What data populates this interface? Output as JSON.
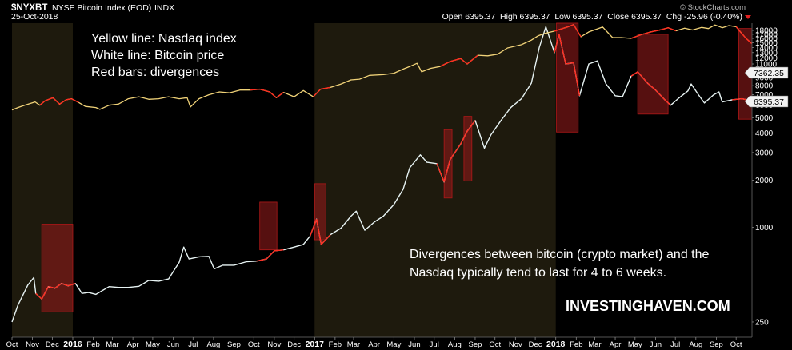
{
  "header": {
    "symbol": "$NYXBT",
    "name": "NYSE Bitcoin Index (EOD)",
    "exchange": "INDX",
    "date": "25-Oct-2018",
    "source": "© StockCharts.com",
    "quote_line": "Open 6395.37  High 6395.37  Low 6395.37  Close 6395.37  Chg -25.96 (-0.40%)"
  },
  "annotations": {
    "legend_lines": [
      "Yellow line: Nasdaq index",
      "White line: Bitcoin price",
      "Red bars: divergences"
    ],
    "note_lines": [
      "Divergences between bitcoin (crypto market) and the",
      "Nasdaq typically tend to last for 4 to 6 weeks."
    ],
    "brand": "INVESTINGHAVEN.COM"
  },
  "price_tags": [
    "7362.35",
    "6395.37"
  ],
  "colors": {
    "background": "#000000",
    "year_shade": "#1e1a0d",
    "bitcoin_line": "#e6f2f2",
    "nasdaq_line": "#f0d278",
    "divergence_fill": "#8b1a1a",
    "divergence_line": "#ff2b1e"
  },
  "chart_data": {
    "type": "line",
    "scale": "log",
    "x_range": [
      "2015-10-01",
      "2018-10-25"
    ],
    "ylim": [
      200,
      20000
    ],
    "y_ticks": [
      "18000",
      "17000",
      "16000",
      "15000",
      "14000",
      "13000",
      "12000",
      "11000",
      "10000",
      "9000",
      "8000",
      "7000",
      "6000",
      "5000",
      "4000",
      "3000",
      "2000",
      "1000",
      "250"
    ],
    "x_ticks": [
      {
        "label": "Oct",
        "date": "2015-10-01"
      },
      {
        "label": "Nov",
        "date": "2015-11-01"
      },
      {
        "label": "Dec",
        "date": "2015-12-01"
      },
      {
        "label": "2016",
        "date": "2016-01-01",
        "bold": true
      },
      {
        "label": "Feb",
        "date": "2016-02-01"
      },
      {
        "label": "Mar",
        "date": "2016-03-01"
      },
      {
        "label": "Apr",
        "date": "2016-04-01"
      },
      {
        "label": "May",
        "date": "2016-05-01"
      },
      {
        "label": "Jun",
        "date": "2016-06-01"
      },
      {
        "label": "Jul",
        "date": "2016-07-01"
      },
      {
        "label": "Aug",
        "date": "2016-08-01"
      },
      {
        "label": "Sep",
        "date": "2016-09-01"
      },
      {
        "label": "Oct",
        "date": "2016-10-01"
      },
      {
        "label": "Nov",
        "date": "2016-11-01"
      },
      {
        "label": "Dec",
        "date": "2016-12-01"
      },
      {
        "label": "2017",
        "date": "2017-01-01",
        "bold": true
      },
      {
        "label": "Feb",
        "date": "2017-02-01"
      },
      {
        "label": "Mar",
        "date": "2017-03-01"
      },
      {
        "label": "Apr",
        "date": "2017-04-01"
      },
      {
        "label": "May",
        "date": "2017-05-01"
      },
      {
        "label": "Jun",
        "date": "2017-06-01"
      },
      {
        "label": "Jul",
        "date": "2017-07-01"
      },
      {
        "label": "Aug",
        "date": "2017-08-01"
      },
      {
        "label": "Sep",
        "date": "2017-09-01"
      },
      {
        "label": "Oct",
        "date": "2017-10-01"
      },
      {
        "label": "Nov",
        "date": "2017-11-01"
      },
      {
        "label": "Dec",
        "date": "2017-12-01"
      },
      {
        "label": "2018",
        "date": "2018-01-01",
        "bold": true
      },
      {
        "label": "Feb",
        "date": "2018-02-01"
      },
      {
        "label": "Mar",
        "date": "2018-03-01"
      },
      {
        "label": "Apr",
        "date": "2018-04-01"
      },
      {
        "label": "May",
        "date": "2018-05-01"
      },
      {
        "label": "Jun",
        "date": "2018-06-01"
      },
      {
        "label": "Jul",
        "date": "2018-07-01"
      },
      {
        "label": "Aug",
        "date": "2018-08-01"
      },
      {
        "label": "Sep",
        "date": "2018-09-01"
      },
      {
        "label": "Oct",
        "date": "2018-10-01"
      }
    ],
    "shaded_years": [
      [
        "2015-10-01",
        "2016-01-01"
      ],
      [
        "2017-01-01",
        "2018-01-01"
      ]
    ],
    "series": [
      {
        "name": "Bitcoin",
        "color": "#e6f2f2",
        "points": [
          [
            "2015-10-01",
            250
          ],
          [
            "2015-10-10",
            320
          ],
          [
            "2015-10-25",
            430
          ],
          [
            "2015-11-03",
            480
          ],
          [
            "2015-11-06",
            380
          ],
          [
            "2015-11-15",
            350
          ],
          [
            "2015-11-25",
            420
          ],
          [
            "2015-12-05",
            410
          ],
          [
            "2015-12-15",
            440
          ],
          [
            "2015-12-25",
            425
          ],
          [
            "2016-01-05",
            440
          ],
          [
            "2016-01-15",
            380
          ],
          [
            "2016-01-25",
            385
          ],
          [
            "2016-02-05",
            375
          ],
          [
            "2016-02-25",
            420
          ],
          [
            "2016-03-10",
            415
          ],
          [
            "2016-03-25",
            415
          ],
          [
            "2016-04-10",
            422
          ],
          [
            "2016-04-25",
            460
          ],
          [
            "2016-05-10",
            455
          ],
          [
            "2016-05-25",
            470
          ],
          [
            "2016-06-10",
            600
          ],
          [
            "2016-06-17",
            750
          ],
          [
            "2016-06-25",
            630
          ],
          [
            "2016-07-10",
            650
          ],
          [
            "2016-07-25",
            655
          ],
          [
            "2016-08-02",
            545
          ],
          [
            "2016-08-15",
            575
          ],
          [
            "2016-09-01",
            575
          ],
          [
            "2016-09-20",
            605
          ],
          [
            "2016-10-05",
            610
          ],
          [
            "2016-10-20",
            630
          ],
          [
            "2016-11-01",
            710
          ],
          [
            "2016-11-15",
            720
          ],
          [
            "2016-12-01",
            750
          ],
          [
            "2016-12-15",
            780
          ],
          [
            "2016-12-25",
            880
          ],
          [
            "2017-01-04",
            1130
          ],
          [
            "2017-01-11",
            780
          ],
          [
            "2017-01-25",
            900
          ],
          [
            "2017-02-10",
            990
          ],
          [
            "2017-02-25",
            1180
          ],
          [
            "2017-03-05",
            1270
          ],
          [
            "2017-03-18",
            960
          ],
          [
            "2017-04-01",
            1080
          ],
          [
            "2017-04-15",
            1180
          ],
          [
            "2017-05-01",
            1400
          ],
          [
            "2017-05-15",
            1750
          ],
          [
            "2017-05-25",
            2400
          ],
          [
            "2017-06-10",
            2900
          ],
          [
            "2017-06-20",
            2600
          ],
          [
            "2017-07-05",
            2550
          ],
          [
            "2017-07-16",
            1950
          ],
          [
            "2017-07-25",
            2700
          ],
          [
            "2017-08-10",
            3400
          ],
          [
            "2017-08-20",
            4100
          ],
          [
            "2017-09-01",
            4800
          ],
          [
            "2017-09-15",
            3200
          ],
          [
            "2017-09-25",
            3900
          ],
          [
            "2017-10-10",
            4800
          ],
          [
            "2017-10-25",
            5800
          ],
          [
            "2017-11-10",
            6600
          ],
          [
            "2017-11-25",
            8300
          ],
          [
            "2017-12-07",
            14000
          ],
          [
            "2017-12-17",
            19000
          ],
          [
            "2017-12-30",
            13000
          ],
          [
            "2018-01-06",
            17000
          ],
          [
            "2018-01-16",
            11000
          ],
          [
            "2018-01-28",
            11200
          ],
          [
            "2018-02-06",
            6900
          ],
          [
            "2018-02-20",
            11000
          ],
          [
            "2018-03-05",
            11500
          ],
          [
            "2018-03-18",
            8200
          ],
          [
            "2018-04-01",
            6900
          ],
          [
            "2018-04-12",
            6800
          ],
          [
            "2018-04-25",
            9200
          ],
          [
            "2018-05-05",
            9800
          ],
          [
            "2018-05-20",
            8300
          ],
          [
            "2018-06-01",
            7500
          ],
          [
            "2018-06-15",
            6500
          ],
          [
            "2018-06-24",
            6000
          ],
          [
            "2018-07-05",
            6600
          ],
          [
            "2018-07-20",
            7400
          ],
          [
            "2018-07-25",
            8200
          ],
          [
            "2018-08-05",
            7000
          ],
          [
            "2018-08-14",
            6200
          ],
          [
            "2018-08-28",
            7000
          ],
          [
            "2018-09-05",
            7300
          ],
          [
            "2018-09-10",
            6300
          ],
          [
            "2018-09-25",
            6500
          ],
          [
            "2018-10-10",
            6600
          ],
          [
            "2018-10-20",
            6450
          ],
          [
            "2018-10-25",
            6395
          ]
        ]
      },
      {
        "name": "Nasdaq",
        "color": "#f0d278",
        "points": [
          [
            "2015-10-01",
            5600
          ],
          [
            "2015-10-10",
            5800
          ],
          [
            "2015-10-20",
            6000
          ],
          [
            "2015-11-05",
            6300
          ],
          [
            "2015-11-12",
            6000
          ],
          [
            "2015-11-20",
            6400
          ],
          [
            "2015-12-02",
            6700
          ],
          [
            "2015-12-12",
            6100
          ],
          [
            "2015-12-22",
            6500
          ],
          [
            "2015-12-30",
            6600
          ],
          [
            "2016-01-10",
            6250
          ],
          [
            "2016-01-20",
            5900
          ],
          [
            "2016-02-05",
            5800
          ],
          [
            "2016-02-11",
            5650
          ],
          [
            "2016-02-25",
            6000
          ],
          [
            "2016-03-10",
            6100
          ],
          [
            "2016-03-25",
            6600
          ],
          [
            "2016-04-10",
            6800
          ],
          [
            "2016-04-25",
            6550
          ],
          [
            "2016-05-10",
            6600
          ],
          [
            "2016-05-25",
            6800
          ],
          [
            "2016-06-10",
            6600
          ],
          [
            "2016-06-22",
            6700
          ],
          [
            "2016-06-27",
            5850
          ],
          [
            "2016-07-10",
            6600
          ],
          [
            "2016-07-25",
            7000
          ],
          [
            "2016-08-10",
            7300
          ],
          [
            "2016-08-25",
            7200
          ],
          [
            "2016-09-10",
            7500
          ],
          [
            "2016-09-25",
            7500
          ],
          [
            "2016-10-10",
            7600
          ],
          [
            "2016-10-25",
            7300
          ],
          [
            "2016-11-04",
            6700
          ],
          [
            "2016-11-15",
            7250
          ],
          [
            "2016-12-01",
            6800
          ],
          [
            "2016-12-15",
            7450
          ],
          [
            "2016-12-30",
            6800
          ],
          [
            "2017-01-10",
            7600
          ],
          [
            "2017-01-25",
            7800
          ],
          [
            "2017-02-10",
            8200
          ],
          [
            "2017-02-25",
            8700
          ],
          [
            "2017-03-10",
            8800
          ],
          [
            "2017-03-25",
            9300
          ],
          [
            "2017-04-15",
            9400
          ],
          [
            "2017-05-01",
            9600
          ],
          [
            "2017-05-15",
            10200
          ],
          [
            "2017-05-25",
            10600
          ],
          [
            "2017-06-05",
            11100
          ],
          [
            "2017-06-12",
            9800
          ],
          [
            "2017-06-25",
            10300
          ],
          [
            "2017-07-10",
            10600
          ],
          [
            "2017-07-25",
            11400
          ],
          [
            "2017-08-10",
            11900
          ],
          [
            "2017-08-20",
            11000
          ],
          [
            "2017-09-05",
            12500
          ],
          [
            "2017-09-20",
            12400
          ],
          [
            "2017-10-05",
            12700
          ],
          [
            "2017-10-20",
            13900
          ],
          [
            "2017-11-10",
            14600
          ],
          [
            "2017-11-25",
            15600
          ],
          [
            "2017-12-05",
            16600
          ],
          [
            "2017-12-15",
            17200
          ],
          [
            "2017-12-30",
            17800
          ],
          [
            "2018-01-20",
            19000
          ],
          [
            "2018-01-28",
            19600
          ],
          [
            "2018-02-08",
            16400
          ],
          [
            "2018-02-20",
            17600
          ],
          [
            "2018-03-05",
            18400
          ],
          [
            "2018-03-13",
            18900
          ],
          [
            "2018-03-28",
            16200
          ],
          [
            "2018-04-10",
            16200
          ],
          [
            "2018-04-25",
            16000
          ],
          [
            "2018-05-10",
            16900
          ],
          [
            "2018-05-25",
            17600
          ],
          [
            "2018-06-10",
            18200
          ],
          [
            "2018-06-20",
            18700
          ],
          [
            "2018-07-02",
            17900
          ],
          [
            "2018-07-15",
            18600
          ],
          [
            "2018-07-27",
            18100
          ],
          [
            "2018-08-10",
            18800
          ],
          [
            "2018-08-20",
            18500
          ],
          [
            "2018-08-30",
            19500
          ],
          [
            "2018-09-10",
            18700
          ],
          [
            "2018-09-20",
            19300
          ],
          [
            "2018-10-01",
            19000
          ],
          [
            "2018-10-08",
            17500
          ],
          [
            "2018-10-16",
            16000
          ],
          [
            "2018-10-25",
            14800
          ]
        ]
      }
    ],
    "divergence_windows": [
      {
        "start": "2015-11-15",
        "end": "2016-01-01",
        "high": 1050,
        "low": 290
      },
      {
        "start": "2016-10-10",
        "end": "2016-11-05",
        "high": 1450,
        "low": 720
      },
      {
        "start": "2017-01-01",
        "end": "2017-01-18",
        "high": 1900,
        "low": 835
      },
      {
        "start": "2017-07-16",
        "end": "2017-07-28",
        "high": 4200,
        "low": 1540
      },
      {
        "start": "2017-08-15",
        "end": "2017-08-27",
        "high": 5100,
        "low": 1980
      },
      {
        "start": "2018-01-02",
        "end": "2018-02-04",
        "high": 20000,
        "low": 4050
      },
      {
        "start": "2018-05-05",
        "end": "2018-06-20",
        "high": 17000,
        "low": 5270
      },
      {
        "start": "2018-10-05",
        "end": "2018-10-25",
        "high": 18500,
        "low": 4890
      }
    ]
  }
}
